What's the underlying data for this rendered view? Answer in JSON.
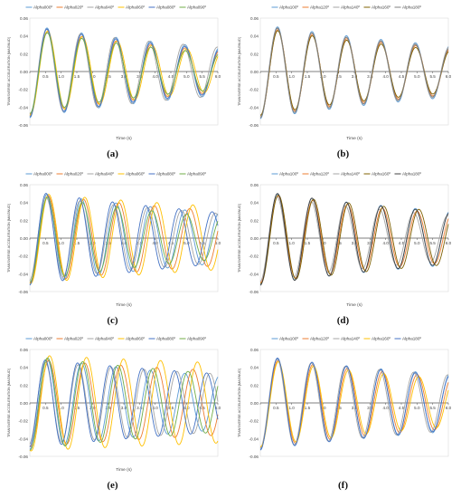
{
  "chart_data": [
    {
      "type": "line",
      "panel_label": "(a)",
      "xlabel": "Time (s)",
      "ylabel": "TRANSVERSE ACCELERATION [MAGNUD]",
      "xlim": [
        0,
        6
      ],
      "ylim": [
        -0.06,
        0.06
      ],
      "xticks": [
        "0",
        "0.5",
        "1.0",
        "1.5",
        "2.0",
        "2.5",
        "3.0",
        "3.5",
        "4.0",
        "4.5",
        "5.0",
        "5.5",
        "6.0"
      ],
      "yticks": [
        "-0.06",
        "-0.04",
        "-0.02",
        "0.00",
        "0.02",
        "0.04",
        "0.06"
      ],
      "legend_position": "top",
      "series": [
        {
          "name": "Alpha000º",
          "color": "#5b9bd5"
        },
        {
          "name": "Alpha020º",
          "color": "#ed7d31"
        },
        {
          "name": "Alpha040º",
          "color": "#a5a5a5"
        },
        {
          "name": "Alpha060º",
          "color": "#ffc000"
        },
        {
          "name": "Alpha080º",
          "color": "#4472c4"
        },
        {
          "name": "Alpha090º",
          "color": "#70ad47"
        }
      ],
      "waves": [
        {
          "amp": 0.052,
          "period": 1.1,
          "phase": 0.0,
          "decay": 0.11
        },
        {
          "amp": 0.048,
          "period": 1.1,
          "phase": 0.01,
          "decay": 0.12
        },
        {
          "amp": 0.05,
          "period": 1.09,
          "phase": -0.01,
          "decay": 0.1
        },
        {
          "amp": 0.049,
          "period": 1.11,
          "phase": 0.02,
          "decay": 0.13
        },
        {
          "amp": 0.051,
          "period": 1.1,
          "phase": 0.0,
          "decay": 0.12
        },
        {
          "amp": 0.047,
          "period": 1.1,
          "phase": 0.01,
          "decay": 0.14
        }
      ]
    },
    {
      "type": "line",
      "panel_label": "(b)",
      "xlabel": "Time (s)",
      "ylabel": "TRANSVERSE ACCELERATION [MAGNUD]",
      "xlim": [
        0,
        6
      ],
      "ylim": [
        -0.06,
        0.06
      ],
      "xticks": [
        "0",
        "0.5",
        "1.0",
        "1.5",
        "2.0",
        "2.5",
        "3.0",
        "3.5",
        "4.0",
        "4.5",
        "5.0",
        "5.5",
        "6.0"
      ],
      "yticks": [
        "-0.06",
        "-0.04",
        "-0.02",
        "0.00",
        "0.02",
        "0.04",
        "0.06"
      ],
      "legend_position": "top",
      "series": [
        {
          "name": "Alpha100º",
          "color": "#5b9bd5"
        },
        {
          "name": "Alpha120º",
          "color": "#ed7d31"
        },
        {
          "name": "Alpha140º",
          "color": "#a5a5a5"
        },
        {
          "name": "Alpha160º",
          "color": "#7f6000"
        },
        {
          "name": "Alpha180º",
          "color": "#7f7f7f"
        }
      ],
      "waves": [
        {
          "amp": 0.053,
          "period": 1.1,
          "phase": 0.0,
          "decay": 0.1
        },
        {
          "amp": 0.05,
          "period": 1.1,
          "phase": 0.01,
          "decay": 0.11
        },
        {
          "amp": 0.051,
          "period": 1.1,
          "phase": -0.01,
          "decay": 0.1
        },
        {
          "amp": 0.049,
          "period": 1.1,
          "phase": 0.01,
          "decay": 0.12
        },
        {
          "amp": 0.052,
          "period": 1.1,
          "phase": 0.0,
          "decay": 0.11
        }
      ]
    },
    {
      "type": "line",
      "panel_label": "(c)",
      "xlabel": "Time (s)",
      "ylabel": "TRANSVERSE ACCELERATION [MAGNUD]",
      "xlim": [
        0,
        6
      ],
      "ylim": [
        -0.06,
        0.06
      ],
      "xticks": [
        "0",
        "0.5",
        "1.0",
        "1.5",
        "2.0",
        "2.5",
        "3.0",
        "3.5",
        "4.0",
        "4.5",
        "5.0",
        "5.5",
        "6.0"
      ],
      "yticks": [
        "-0.06",
        "-0.04",
        "-0.02",
        "0.00",
        "0.02",
        "0.04",
        "0.06"
      ],
      "legend_position": "top",
      "series": [
        {
          "name": "Alpha000º",
          "color": "#5b9bd5"
        },
        {
          "name": "Alpha020º",
          "color": "#ed7d31"
        },
        {
          "name": "Alpha040º",
          "color": "#a5a5a5"
        },
        {
          "name": "Alpha060º",
          "color": "#ffc000"
        },
        {
          "name": "Alpha080º",
          "color": "#4472c4"
        },
        {
          "name": "Alpha090º",
          "color": "#70ad47"
        }
      ],
      "waves": [
        {
          "amp": 0.052,
          "period": 1.1,
          "phase": 0.0,
          "decay": 0.1
        },
        {
          "amp": 0.05,
          "period": 1.13,
          "phase": 0.02,
          "decay": 0.08
        },
        {
          "amp": 0.048,
          "period": 1.08,
          "phase": -0.02,
          "decay": 0.09
        },
        {
          "amp": 0.051,
          "period": 1.15,
          "phase": 0.03,
          "decay": 0.06
        },
        {
          "amp": 0.053,
          "period": 1.06,
          "phase": -0.01,
          "decay": 0.1
        },
        {
          "amp": 0.049,
          "period": 1.11,
          "phase": 0.01,
          "decay": 0.12
        }
      ]
    },
    {
      "type": "line",
      "panel_label": "(d)",
      "xlabel": "Time (s)",
      "ylabel": "TRANSVERSE ACCELERATION [MAGNUD]",
      "xlim": [
        0,
        6
      ],
      "ylim": [
        -0.06,
        0.06
      ],
      "xticks": [
        "0",
        "0.5",
        "1.0",
        "1.5",
        "2.0",
        "2.5",
        "3.0",
        "3.5",
        "4.0",
        "4.5",
        "5.0",
        "5.5",
        "6.0"
      ],
      "yticks": [
        "-0.06",
        "-0.04",
        "-0.02",
        "0.00",
        "0.02",
        "0.04",
        "0.06"
      ],
      "legend_position": "top",
      "series": [
        {
          "name": "Alpha100º",
          "color": "#5b9bd5"
        },
        {
          "name": "Alpha120º",
          "color": "#ed7d31"
        },
        {
          "name": "Alpha140º",
          "color": "#a5a5a5"
        },
        {
          "name": "Alpha160º",
          "color": "#7f6000"
        },
        {
          "name": "Alpha180º",
          "color": "#404040"
        }
      ],
      "waves": [
        {
          "amp": 0.052,
          "period": 1.1,
          "phase": 0.0,
          "decay": 0.09
        },
        {
          "amp": 0.05,
          "period": 1.11,
          "phase": 0.01,
          "decay": 0.1
        },
        {
          "amp": 0.049,
          "period": 1.09,
          "phase": -0.01,
          "decay": 0.11
        },
        {
          "amp": 0.051,
          "period": 1.12,
          "phase": 0.02,
          "decay": 0.09
        },
        {
          "amp": 0.053,
          "period": 1.1,
          "phase": 0.0,
          "decay": 0.1
        }
      ]
    },
    {
      "type": "line",
      "panel_label": "(e)",
      "xlabel": "Time (s)",
      "ylabel": "TRANSVERSE ACCELERATION [MAGNUD]",
      "xlim": [
        0,
        6
      ],
      "ylim": [
        -0.06,
        0.06
      ],
      "xticks": [
        "0",
        "0.5",
        "1.0",
        "1.5",
        "2.0",
        "2.5",
        "3.0",
        "3.5",
        "4.0",
        "4.5",
        "5.0",
        "5.5",
        "6.0"
      ],
      "yticks": [
        "-0.06",
        "-0.04",
        "-0.02",
        "0.00",
        "0.02",
        "0.04",
        "0.06"
      ],
      "legend_position": "top",
      "series": [
        {
          "name": "Alpha000º",
          "color": "#5b9bd5"
        },
        {
          "name": "Alpha020º",
          "color": "#ed7d31"
        },
        {
          "name": "Alpha040º",
          "color": "#a5a5a5"
        },
        {
          "name": "Alpha060º",
          "color": "#ffc000"
        },
        {
          "name": "Alpha080º",
          "color": "#4472c4"
        },
        {
          "name": "Alpha090º",
          "color": "#70ad47"
        }
      ],
      "waves": [
        {
          "amp": 0.052,
          "period": 1.1,
          "phase": 0.0,
          "decay": 0.09
        },
        {
          "amp": 0.049,
          "period": 1.15,
          "phase": 0.03,
          "decay": 0.05
        },
        {
          "amp": 0.047,
          "period": 1.05,
          "phase": -0.03,
          "decay": 0.06
        },
        {
          "amp": 0.054,
          "period": 1.18,
          "phase": 0.04,
          "decay": 0.03
        },
        {
          "amp": 0.05,
          "period": 1.03,
          "phase": -0.02,
          "decay": 0.07
        },
        {
          "amp": 0.053,
          "period": 1.12,
          "phase": 0.01,
          "decay": 0.08
        }
      ]
    },
    {
      "type": "line",
      "panel_label": "(f)",
      "xlabel": "",
      "ylabel": "TRANSVERSE ACCELERATION [MAGNUD]",
      "xlim": [
        0,
        6
      ],
      "ylim": [
        -0.06,
        0.06
      ],
      "xticks": [
        "0",
        "0.5",
        "1.0",
        "1.5",
        "2.0",
        "2.5",
        "3.0",
        "3.5",
        "4.0",
        "4.5",
        "5.0",
        "5.5",
        "6.0"
      ],
      "yticks": [
        "-0.06",
        "-0.04",
        "-0.02",
        "0.00",
        "0.02",
        "0.04",
        "0.06"
      ],
      "legend_position": "top",
      "series": [
        {
          "name": "Alpha100º",
          "color": "#5b9bd5"
        },
        {
          "name": "Alpha120º",
          "color": "#ed7d31"
        },
        {
          "name": "Alpha140º",
          "color": "#a5a5a5"
        },
        {
          "name": "Alpha160º",
          "color": "#ffc000"
        },
        {
          "name": "Alpha180º",
          "color": "#4472c4"
        }
      ],
      "waves": [
        {
          "amp": 0.052,
          "period": 1.1,
          "phase": 0.0,
          "decay": 0.08
        },
        {
          "amp": 0.05,
          "period": 1.11,
          "phase": 0.01,
          "decay": 0.09
        },
        {
          "amp": 0.051,
          "period": 1.09,
          "phase": -0.01,
          "decay": 0.08
        },
        {
          "amp": 0.049,
          "period": 1.12,
          "phase": 0.02,
          "decay": 0.1
        },
        {
          "amp": 0.053,
          "period": 1.1,
          "phase": 0.0,
          "decay": 0.09
        }
      ]
    }
  ]
}
